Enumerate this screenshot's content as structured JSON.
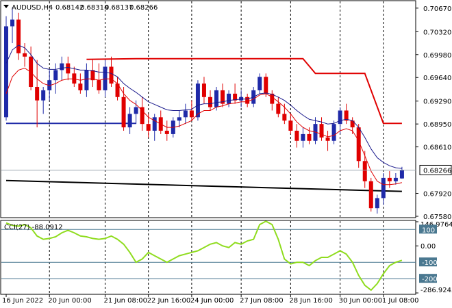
{
  "header": {
    "symbol": "AUDUSD,H4",
    "open": "0.68142",
    "high": "0.68314",
    "low": "0.68137",
    "close": "0.68266"
  },
  "cci_label": "CCI(27) -88.0912",
  "colors": {
    "bull": "#1f2aa8",
    "bear": "#e00000",
    "ma_fast": "#e00000",
    "ma_slow": "#1a1a8c",
    "support": "#000000",
    "cci": "#8fdc1e",
    "level": "#4a7890",
    "price_tag": "#ffffff"
  },
  "chart_data": [
    {
      "type": "candlestick",
      "ylim": [
        0.6758,
        0.7076
      ],
      "y_ticks": [
        "0.70670",
        "0.70320",
        "0.69980",
        "0.69640",
        "0.69290",
        "0.68950",
        "0.68610",
        "0.68266",
        "0.67920",
        "0.67580"
      ],
      "x_ticks": [
        "16 Jun 2022",
        "20 Jun 00:00",
        "21 Jun 08:00",
        "22 Jun 16:00",
        "24 Jun 00:00",
        "27 Jun 08:00",
        "28 Jun 16:00",
        "30 Jun 00:00",
        "1 Jul 08:00"
      ],
      "last_price": "0.68266",
      "candles": [
        [
          0.6905,
          0.7055,
          0.69,
          0.704
        ],
        [
          0.704,
          0.7068,
          0.7015,
          0.705
        ],
        [
          0.705,
          0.706,
          0.699,
          0.7
        ],
        [
          0.7,
          0.7015,
          0.698,
          0.6995
        ],
        [
          0.6995,
          0.701,
          0.6945,
          0.695
        ],
        [
          0.695,
          0.699,
          0.689,
          0.693
        ],
        [
          0.693,
          0.695,
          0.691,
          0.6945
        ],
        [
          0.6945,
          0.6975,
          0.693,
          0.696
        ],
        [
          0.696,
          0.6985,
          0.694,
          0.6975
        ],
        [
          0.6975,
          0.6995,
          0.696,
          0.6985
        ],
        [
          0.6985,
          0.6995,
          0.696,
          0.697
        ],
        [
          0.697,
          0.698,
          0.695,
          0.6955
        ],
        [
          0.6955,
          0.697,
          0.694,
          0.6945
        ],
        [
          0.6945,
          0.6985,
          0.6935,
          0.6975
        ],
        [
          0.6975,
          0.699,
          0.695,
          0.696
        ],
        [
          0.696,
          0.6985,
          0.694,
          0.6945
        ],
        [
          0.6945,
          0.699,
          0.6935,
          0.698
        ],
        [
          0.698,
          0.6995,
          0.695,
          0.6955
        ],
        [
          0.6955,
          0.6965,
          0.693,
          0.6935
        ],
        [
          0.6935,
          0.695,
          0.6885,
          0.689
        ],
        [
          0.689,
          0.692,
          0.688,
          0.691
        ],
        [
          0.691,
          0.693,
          0.6895,
          0.692
        ],
        [
          0.692,
          0.6935,
          0.6885,
          0.6895
        ],
        [
          0.6895,
          0.691,
          0.6875,
          0.6885
        ],
        [
          0.6885,
          0.691,
          0.687,
          0.6905
        ],
        [
          0.6905,
          0.6915,
          0.688,
          0.6885
        ],
        [
          0.6885,
          0.69,
          0.687,
          0.688
        ],
        [
          0.688,
          0.6905,
          0.6875,
          0.69
        ],
        [
          0.69,
          0.6915,
          0.689,
          0.6905
        ],
        [
          0.6905,
          0.6925,
          0.6895,
          0.6915
        ],
        [
          0.6915,
          0.693,
          0.69,
          0.6905
        ],
        [
          0.6905,
          0.696,
          0.69,
          0.6955
        ],
        [
          0.6955,
          0.6965,
          0.6925,
          0.6935
        ],
        [
          0.6935,
          0.6945,
          0.6915,
          0.692
        ],
        [
          0.692,
          0.695,
          0.6915,
          0.6945
        ],
        [
          0.6945,
          0.6955,
          0.692,
          0.6925
        ],
        [
          0.6925,
          0.6945,
          0.692,
          0.694
        ],
        [
          0.694,
          0.6955,
          0.6925,
          0.693
        ],
        [
          0.693,
          0.6945,
          0.692,
          0.6935
        ],
        [
          0.6935,
          0.694,
          0.692,
          0.6925
        ],
        [
          0.6925,
          0.695,
          0.692,
          0.6945
        ],
        [
          0.6945,
          0.697,
          0.694,
          0.6965
        ],
        [
          0.6965,
          0.697,
          0.6935,
          0.694
        ],
        [
          0.694,
          0.6945,
          0.6915,
          0.6925
        ],
        [
          0.6925,
          0.6935,
          0.6905,
          0.691
        ],
        [
          0.691,
          0.6925,
          0.6895,
          0.69
        ],
        [
          0.69,
          0.691,
          0.688,
          0.6885
        ],
        [
          0.6885,
          0.6895,
          0.686,
          0.687
        ],
        [
          0.687,
          0.689,
          0.686,
          0.688
        ],
        [
          0.688,
          0.689,
          0.6865,
          0.687
        ],
        [
          0.687,
          0.6905,
          0.6865,
          0.6895
        ],
        [
          0.6895,
          0.6905,
          0.687,
          0.6875
        ],
        [
          0.6875,
          0.6885,
          0.6855,
          0.687
        ],
        [
          0.687,
          0.69,
          0.6865,
          0.6895
        ],
        [
          0.6895,
          0.692,
          0.688,
          0.6915
        ],
        [
          0.6915,
          0.6925,
          0.6895,
          0.69
        ],
        [
          0.69,
          0.6905,
          0.688,
          0.689
        ],
        [
          0.689,
          0.6895,
          0.683,
          0.684
        ],
        [
          0.684,
          0.6855,
          0.68,
          0.681
        ],
        [
          0.681,
          0.6815,
          0.6765,
          0.677
        ],
        [
          0.677,
          0.679,
          0.6762,
          0.6785
        ],
        [
          0.6785,
          0.6822,
          0.6775,
          0.6815
        ],
        [
          0.6815,
          0.6825,
          0.68,
          0.681
        ],
        [
          0.681,
          0.6822,
          0.6805,
          0.6815
        ],
        [
          0.68142,
          0.68314,
          0.68137,
          0.68266
        ]
      ],
      "ma_slow": [
        0.6985,
        0.7005,
        0.7012,
        0.7008,
        0.6998,
        0.6985,
        0.6978,
        0.6976,
        0.6976,
        0.6978,
        0.6979,
        0.6977,
        0.6975,
        0.6975,
        0.6974,
        0.6972,
        0.6972,
        0.697,
        0.6965,
        0.6955,
        0.6948,
        0.6942,
        0.6935,
        0.6928,
        0.6924,
        0.692,
        0.6916,
        0.6915,
        0.6915,
        0.6916,
        0.6917,
        0.6923,
        0.6925,
        0.6925,
        0.6927,
        0.6928,
        0.693,
        0.6931,
        0.6932,
        0.6932,
        0.6935,
        0.694,
        0.6941,
        0.6939,
        0.6935,
        0.693,
        0.6923,
        0.6915,
        0.6908,
        0.6902,
        0.69,
        0.6898,
        0.6895,
        0.6896,
        0.69,
        0.6902,
        0.69,
        0.689,
        0.6875,
        0.6858,
        0.6845,
        0.6838,
        0.6833,
        0.683,
        0.6829
      ],
      "ma_fast": [
        0.694,
        0.6965,
        0.6975,
        0.6978,
        0.6972,
        0.6962,
        0.6955,
        0.6952,
        0.6955,
        0.696,
        0.6962,
        0.6962,
        0.696,
        0.6962,
        0.6962,
        0.696,
        0.6962,
        0.6962,
        0.6955,
        0.694,
        0.693,
        0.6924,
        0.6915,
        0.6905,
        0.69,
        0.6895,
        0.689,
        0.689,
        0.6892,
        0.6896,
        0.69,
        0.691,
        0.6915,
        0.6915,
        0.692,
        0.6922,
        0.6925,
        0.6926,
        0.6928,
        0.6928,
        0.6932,
        0.6938,
        0.694,
        0.6935,
        0.6928,
        0.692,
        0.691,
        0.6898,
        0.689,
        0.6885,
        0.6883,
        0.688,
        0.6876,
        0.6878,
        0.6885,
        0.6888,
        0.6885,
        0.687,
        0.6848,
        0.6825,
        0.681,
        0.6805,
        0.6805,
        0.6806,
        0.6808
      ],
      "support_line": [
        [
          0,
          0.6811
        ],
        [
          64,
          0.6795
        ]
      ],
      "upper_channel": [
        [
          13,
          0.6991
        ],
        [
          21,
          0.6992
        ],
        [
          48,
          0.6992
        ],
        [
          50,
          0.697
        ],
        [
          58,
          0.697
        ],
        [
          61,
          0.6896
        ],
        [
          64,
          0.6896
        ]
      ],
      "lower_channel": [
        [
          0,
          0.6896
        ],
        [
          21,
          0.6896
        ]
      ]
    },
    {
      "type": "line",
      "name": "CCI(27)",
      "last_value": -88.0912,
      "ylim": [
        -286.9243,
        146.9764
      ],
      "y_ticks": [
        "146.9764",
        "100",
        "0.00",
        "-100",
        "-200",
        "-286.9243"
      ],
      "levels": [
        100,
        -100,
        -200
      ],
      "values": [
        140,
        125,
        120,
        130,
        110,
        60,
        40,
        45,
        55,
        80,
        95,
        80,
        60,
        55,
        45,
        40,
        45,
        60,
        40,
        10,
        -40,
        -100,
        -80,
        -40,
        -60,
        -80,
        -100,
        -80,
        -60,
        -50,
        -40,
        -30,
        -10,
        10,
        20,
        0,
        -10,
        20,
        10,
        30,
        40,
        130,
        150,
        130,
        40,
        -80,
        -110,
        -100,
        -100,
        -120,
        -90,
        -70,
        -70,
        -50,
        -30,
        -50,
        -100,
        -180,
        -240,
        -270,
        -230,
        -170,
        -120,
        -100,
        -88.0912
      ]
    }
  ]
}
